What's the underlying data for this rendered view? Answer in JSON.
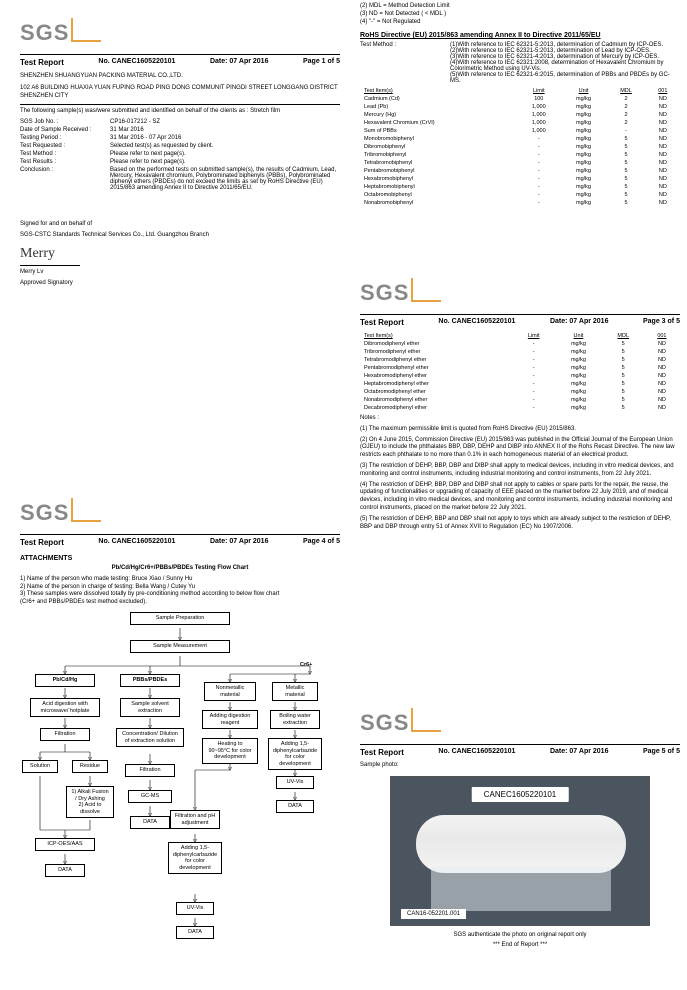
{
  "logo_text": "SGS",
  "report": {
    "title": "Test Report",
    "number_label": "No. CANEC1605220101",
    "date_label": "Date: 07 Apr 2016",
    "page1": "Page 1 of 5",
    "page2_notes": [
      "(2) MDL = Method Detection Limit",
      "(3) ND = Not Detected ( < MDL )",
      "(4) \"-\" = Not Regulated"
    ],
    "page3": "Page 3 of 5",
    "page4": "Page 4 of 5",
    "page5": "Page 5 of 5"
  },
  "company": {
    "name": "SHENZHEN SHUANGYUAN PACKING MATERIAL CO.,LTD.",
    "addr": "102 A6 BUILDING HUAXIA YUAN FUPING ROAD PING DONG COMMUNIT PINGDI STREET LONGGANG DISTRICT SHENZHEN CITY"
  },
  "intro": "The following sample(s) was/were submitted and identified on behalf of the clients as : Stretch film",
  "fields": [
    {
      "k": "SGS Job No. :",
      "v": "CP16-017212 - SZ"
    },
    {
      "k": "Date of Sample Received :",
      "v": "31 Mar 2016"
    },
    {
      "k": "Testing Period :",
      "v": "31 Mar 2016 - 07 Apr 2016"
    },
    {
      "k": "Test Requested :",
      "v": "Selected test(s) as requested by client."
    },
    {
      "k": "Test Method :",
      "v": "Please refer to next page(s)."
    },
    {
      "k": "Test Results :",
      "v": "Please refer to next page(s)."
    },
    {
      "k": "Conclusion :",
      "v": "Based on the performed tests on submitted sample(s), the results of Cadmium, Lead, Mercury, Hexavalent chromium, Polybrominated biphenyls (PBBs), Polybrominated diphenyl ethers (PBDEs) do not exceed  the limits as set by RoHS Directive (EU) 2015/863 amending Annex II to Directive 2011/65/EU."
    }
  ],
  "sign": {
    "for": "Signed for and on behalf of",
    "org": "SGS-CSTC Standards Technical Services Co., Ltd. Guangzhou Branch",
    "sig": "Merry",
    "name": "Merry Lv",
    "role": "Approved Signatory"
  },
  "rohs_title": "RoHS Directive (EU) 2015/863 amending Annex II to Directive 2011/65/EU",
  "method_label": "Test Method :",
  "methods": [
    "(1)With reference to IEC 62321-5:2013, determination of Cadmium by ICP-OES.",
    "(2)With reference to IEC 62321-5:2013, determination of Lead by ICP-OES.",
    "(3)With reference to IEC 62321-4:2013, determination of Mercury by ICP-OES.",
    "(4)With reference to IEC 62321:2008, determination of Hexavalent Chromium by Colorimetric Method using UV-Vis.",
    "(5)With reference to IEC 62321-6:2015, determination of PBBs and PBDEs by GC-MS."
  ],
  "table_hdr": [
    "Test Item(s)",
    "Limit",
    "Unit",
    "MDL",
    "001"
  ],
  "table1": [
    [
      "Cadmium (Cd)",
      "100",
      "mg/kg",
      "2",
      "ND"
    ],
    [
      "Lead (Pb)",
      "1,000",
      "mg/kg",
      "2",
      "ND"
    ],
    [
      "Mercury (Hg)",
      "1,000",
      "mg/kg",
      "2",
      "ND"
    ],
    [
      "Hexavalent Chromium (CrVI)",
      "1,000",
      "mg/kg",
      "2",
      "ND"
    ],
    [
      "Sum of PBBs",
      "1,000",
      "mg/kg",
      "-",
      "ND"
    ],
    [
      "Monobromobiphenyl",
      "-",
      "mg/kg",
      "5",
      "ND"
    ],
    [
      "Dibromobiphenyl",
      "-",
      "mg/kg",
      "5",
      "ND"
    ],
    [
      "Tribromobiphenyl",
      "-",
      "mg/kg",
      "5",
      "ND"
    ],
    [
      "Tetrabromobiphenyl",
      "-",
      "mg/kg",
      "5",
      "ND"
    ],
    [
      "Pentabromobiphenyl",
      "-",
      "mg/kg",
      "5",
      "ND"
    ],
    [
      "Hexabromobiphenyl",
      "-",
      "mg/kg",
      "5",
      "ND"
    ],
    [
      "Heptabromobiphenyl",
      "-",
      "mg/kg",
      "5",
      "ND"
    ],
    [
      "Octabromobiphenyl",
      "-",
      "mg/kg",
      "5",
      "ND"
    ],
    [
      "Nonabromobiphenyl",
      "-",
      "mg/kg",
      "5",
      "ND"
    ]
  ],
  "table2": [
    [
      "Dibromodiphenyl ether",
      "-",
      "mg/kg",
      "5",
      "ND"
    ],
    [
      "Tribromodiphenyl ether",
      "-",
      "mg/kg",
      "5",
      "ND"
    ],
    [
      "Tetrabromodiphenyl ether",
      "-",
      "mg/kg",
      "5",
      "ND"
    ],
    [
      "Pentabromodiphenyl ether",
      "-",
      "mg/kg",
      "5",
      "ND"
    ],
    [
      "Hexabromodiphenyl ether",
      "-",
      "mg/kg",
      "5",
      "ND"
    ],
    [
      "Heptabromodiphenyl ether",
      "-",
      "mg/kg",
      "5",
      "ND"
    ],
    [
      "Octabromodiphenyl ether",
      "-",
      "mg/kg",
      "5",
      "ND"
    ],
    [
      "Nonabromodiphenyl ether",
      "-",
      "mg/kg",
      "5",
      "ND"
    ],
    [
      "Decabromodiphenyl ether",
      "-",
      "mg/kg",
      "5",
      "ND"
    ]
  ],
  "notes_label": "Notes :",
  "notes": [
    "(1) The maximum permissible limit is quoted from RoHS Directive (EU) 2015/863.",
    "(2) On 4 June  2015, Commission Directive (EU) 2015/863 was published in the Official Journal of the European Union (OJEU) to include the phthalates BBP, DBP, DEHP and DIBP into ANNEX II of the Rohs Recast Directive. The new law restricts each phthalate to no more than 0.1% in each homogeneous material of an electrical product.",
    "(3) The restriction of DEHP, BBP, DBP and DIBP shall apply to medical devices, including in vitro medical devices, and monitoring and control instruments, including industrial monitoring and control instruments, from 22 July 2021.",
    "(4) The restriction of DEHP, BBP, DBP and DIBP shall not apply to cables or spare parts for the repair, the reuse, the updating of functionalities or upgrading of capacity of EEE placed on the market before 22 July 2019, and of medical devices, including in vitro medical devices, and monitoring and control instruments, including industrial monitoring and control instruments, placed on the market before 22 July 2021.",
    "(5) The restriction of DEHP, BBP and DBP shall not apply to toys which are already subject to the restriction of DEHP, BBP and DBP through entry 51 of Annex XVII to Regulation (EC) No 1907/2006."
  ],
  "attachments": "ATTACHMENTS",
  "flow_title": "Pb/Cd/Hg/Cr6+/PBBs/PBDEs Testing Flow Chart",
  "flow_notes": [
    "1) Name of the person who made testing:  Bruce Xiao / Sunny Hu",
    "2) Name of the person in charge of testing:  Bella Wang / Cutey Yu",
    "3) These samples were dissolved totally by  pre-conditioning method according to below flow chart",
    "(Cr6+ and PBBs/PBDEs test method excluded)."
  ],
  "flow": {
    "prep": "Sample Preparation",
    "meas": "Sample Measurement",
    "c1": "Pb/Cd/Hg",
    "c2": "PBBs/PBDEs",
    "c3": "Cr6+",
    "acid": "Acid digestion with microwave/ hotplate",
    "filt": "Filtration",
    "sol": "Solution",
    "res": "Residue",
    "alkali": "1) Alkali Fusion / Dry Ashing\n2) Acid to dissolve",
    "icp": "ICP-OES/AAS",
    "data": "DATA",
    "solv": "Sample solvent extraction",
    "conc": "Concentration/ Dilution of extraction solution",
    "gcms": "GC-MS",
    "nonm": "Nonmetallic material",
    "met": "Metallic material",
    "addreag": "Adding digestion reagent",
    "heat": "Heating to 90~95°C for color development",
    "carb": "Adding 1,5-diphenylcarbazide for color development",
    "uv": "UV-Vis",
    "boil": "Boiling water extraction",
    "phadj": "Filtration and pH adjustment"
  },
  "sample_photo_label": "Sample photo:",
  "photo_code_top": "CANEC1605220101",
  "photo_code_bot": "CAN16-052201.001",
  "footer1": "SGS authenticate the photo on original report only",
  "footer2": "*** End of Report ***"
}
